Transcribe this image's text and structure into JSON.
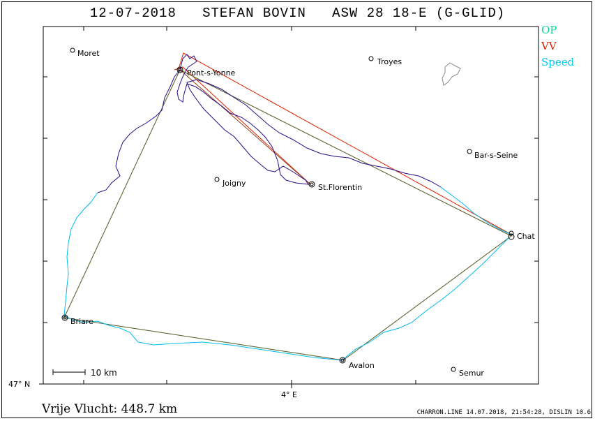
{
  "title": "12-07-2018   STEFAN BOVIN   ASW 28 18-E (G-GLID)",
  "legend": [
    {
      "label": "OP",
      "color": "#00dd99"
    },
    {
      "label": "VV",
      "color": "#dd2200"
    },
    {
      "label": "Speed",
      "color": "#00ccee"
    }
  ],
  "axes": {
    "lat_label": "47° N",
    "lon_label": "4° E"
  },
  "scale_label": "10 km",
  "towns": [
    {
      "name": "Moret"
    },
    {
      "name": "Pont-s-Yonne"
    },
    {
      "name": "Troyes"
    },
    {
      "name": "Bar-s-Seine"
    },
    {
      "name": "Joigny"
    },
    {
      "name": "St.Florentin"
    },
    {
      "name": "Chat"
    },
    {
      "name": "Briare"
    },
    {
      "name": "Avalon"
    },
    {
      "name": "Semur"
    }
  ],
  "footer": {
    "distance": "Vrije Vlucht:  448.7 km",
    "credit": "CHARRON.LINE 14.07.2018, 21:54:28, DISLIN 10.6"
  },
  "colors": {
    "track_dark": "#2a0a88",
    "track_light": "#00bbee",
    "op": "#00dd99",
    "vv": "#dd2200",
    "route": "#8b3a10"
  }
}
